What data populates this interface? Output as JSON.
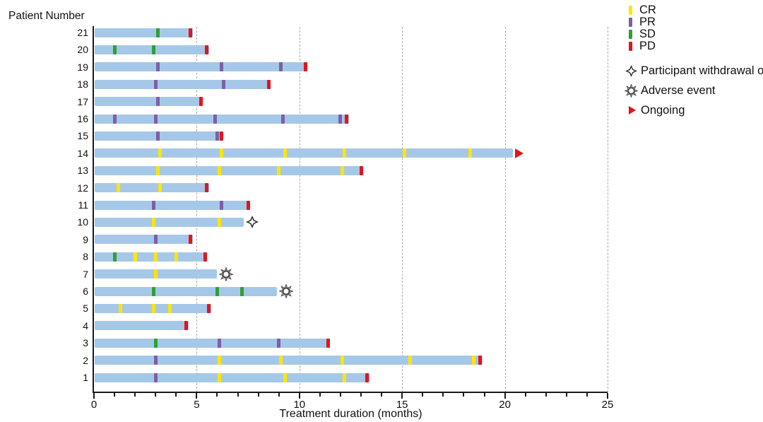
{
  "chart_data": {
    "type": "swimmer-bar",
    "title": "",
    "xlabel": "Treatment duration (months)",
    "ylabel": "Patient Number",
    "xlim": [
      0,
      25
    ],
    "x_major_ticks": [
      0,
      5,
      10,
      15,
      20,
      25
    ],
    "x_minor_tick_interval_months": 1,
    "gridline_months": [
      5,
      10,
      15,
      20,
      25
    ],
    "grid_style": "dashed-vertical",
    "legend_position": "top-right",
    "colors": {
      "bar": "#a6c8e8",
      "CR": "#ffe500",
      "PR": "#7c60a6",
      "SD": "#2fa033",
      "PD": "#e2151c",
      "ongoing": "#e2151c",
      "gridline": "#ababab",
      "axis": "#1a1a1a"
    },
    "legend": [
      {
        "label": "CR",
        "type": "tick",
        "color": "#ffe500"
      },
      {
        "label": "PR",
        "type": "tick",
        "color": "#7c60a6"
      },
      {
        "label": "SD",
        "type": "tick",
        "color": "#2fa033"
      },
      {
        "label": "PD",
        "type": "tick",
        "color": "#e2151c"
      },
      {
        "label": "Participant withdrawal o",
        "type": "symbol",
        "symbol": "diamond"
      },
      {
        "label": "Adverse event",
        "type": "symbol",
        "symbol": "sun"
      },
      {
        "label": "Ongoing",
        "type": "symbol",
        "symbol": "arrow"
      }
    ],
    "patients": [
      {
        "id": 21,
        "end": 4.8,
        "markers": [
          {
            "m": 3.1,
            "t": "SD"
          },
          {
            "m": 4.7,
            "t": "PD"
          }
        ]
      },
      {
        "id": 20,
        "end": 5.6,
        "markers": [
          {
            "m": 1.0,
            "t": "SD"
          },
          {
            "m": 2.9,
            "t": "SD"
          },
          {
            "m": 5.5,
            "t": "PD"
          }
        ]
      },
      {
        "id": 19,
        "end": 10.4,
        "markers": [
          {
            "m": 3.1,
            "t": "PR"
          },
          {
            "m": 6.2,
            "t": "PR"
          },
          {
            "m": 9.1,
            "t": "PR"
          },
          {
            "m": 10.3,
            "t": "PD"
          }
        ]
      },
      {
        "id": 18,
        "end": 8.6,
        "markers": [
          {
            "m": 3.0,
            "t": "PR"
          },
          {
            "m": 6.3,
            "t": "PR"
          },
          {
            "m": 8.5,
            "t": "PD"
          }
        ]
      },
      {
        "id": 17,
        "end": 5.3,
        "markers": [
          {
            "m": 3.1,
            "t": "PR"
          },
          {
            "m": 5.2,
            "t": "PD"
          }
        ]
      },
      {
        "id": 16,
        "end": 12.4,
        "markers": [
          {
            "m": 1.0,
            "t": "PR"
          },
          {
            "m": 3.0,
            "t": "PR"
          },
          {
            "m": 5.9,
            "t": "PR"
          },
          {
            "m": 9.2,
            "t": "PR"
          },
          {
            "m": 12.0,
            "t": "PR"
          },
          {
            "m": 12.3,
            "t": "PD"
          }
        ]
      },
      {
        "id": 15,
        "end": 6.3,
        "markers": [
          {
            "m": 3.1,
            "t": "PR"
          },
          {
            "m": 6.0,
            "t": "PR"
          },
          {
            "m": 6.2,
            "t": "PD"
          }
        ]
      },
      {
        "id": 14,
        "end": 20.4,
        "ongoing": true,
        "markers": [
          {
            "m": 3.2,
            "t": "CR"
          },
          {
            "m": 6.2,
            "t": "CR"
          },
          {
            "m": 9.3,
            "t": "CR"
          },
          {
            "m": 12.2,
            "t": "CR"
          },
          {
            "m": 15.1,
            "t": "CR"
          },
          {
            "m": 18.3,
            "t": "CR"
          }
        ]
      },
      {
        "id": 13,
        "end": 13.1,
        "markers": [
          {
            "m": 3.1,
            "t": "CR"
          },
          {
            "m": 6.1,
            "t": "CR"
          },
          {
            "m": 9.0,
            "t": "CR"
          },
          {
            "m": 12.1,
            "t": "CR"
          },
          {
            "m": 13.0,
            "t": "PD"
          }
        ]
      },
      {
        "id": 12,
        "end": 5.6,
        "markers": [
          {
            "m": 1.2,
            "t": "CR"
          },
          {
            "m": 3.2,
            "t": "CR"
          },
          {
            "m": 5.5,
            "t": "PD"
          }
        ]
      },
      {
        "id": 11,
        "end": 7.6,
        "markers": [
          {
            "m": 2.9,
            "t": "PR"
          },
          {
            "m": 6.2,
            "t": "PR"
          },
          {
            "m": 7.5,
            "t": "PD"
          }
        ]
      },
      {
        "id": 10,
        "end": 7.3,
        "event": "withdrawal",
        "markers": [
          {
            "m": 2.9,
            "t": "CR"
          },
          {
            "m": 6.1,
            "t": "CR"
          }
        ]
      },
      {
        "id": 9,
        "end": 4.8,
        "markers": [
          {
            "m": 3.0,
            "t": "PR"
          },
          {
            "m": 4.7,
            "t": "PD"
          }
        ]
      },
      {
        "id": 8,
        "end": 5.5,
        "markers": [
          {
            "m": 1.0,
            "t": "SD"
          },
          {
            "m": 2.0,
            "t": "CR"
          },
          {
            "m": 3.0,
            "t": "CR"
          },
          {
            "m": 4.0,
            "t": "CR"
          },
          {
            "m": 5.4,
            "t": "PD"
          }
        ]
      },
      {
        "id": 7,
        "end": 6.0,
        "event": "adverse",
        "markers": [
          {
            "m": 3.0,
            "t": "CR"
          }
        ]
      },
      {
        "id": 6,
        "end": 8.9,
        "event": "adverse",
        "markers": [
          {
            "m": 2.9,
            "t": "SD"
          },
          {
            "m": 6.0,
            "t": "SD"
          },
          {
            "m": 7.2,
            "t": "SD"
          }
        ]
      },
      {
        "id": 5,
        "end": 5.7,
        "markers": [
          {
            "m": 1.3,
            "t": "CR"
          },
          {
            "m": 2.9,
            "t": "CR"
          },
          {
            "m": 3.7,
            "t": "CR"
          },
          {
            "m": 5.6,
            "t": "PD"
          }
        ]
      },
      {
        "id": 4,
        "end": 4.6,
        "markers": [
          {
            "m": 4.5,
            "t": "PD"
          }
        ]
      },
      {
        "id": 3,
        "end": 11.5,
        "markers": [
          {
            "m": 3.0,
            "t": "SD"
          },
          {
            "m": 6.1,
            "t": "PR"
          },
          {
            "m": 9.0,
            "t": "PR"
          },
          {
            "m": 11.4,
            "t": "PD"
          }
        ]
      },
      {
        "id": 2,
        "end": 18.9,
        "markers": [
          {
            "m": 3.0,
            "t": "PR"
          },
          {
            "m": 6.1,
            "t": "CR"
          },
          {
            "m": 9.1,
            "t": "CR"
          },
          {
            "m": 12.1,
            "t": "CR"
          },
          {
            "m": 15.4,
            "t": "CR"
          },
          {
            "m": 18.5,
            "t": "CR"
          },
          {
            "m": 18.8,
            "t": "PD"
          }
        ]
      },
      {
        "id": 1,
        "end": 13.4,
        "markers": [
          {
            "m": 3.0,
            "t": "PR"
          },
          {
            "m": 6.1,
            "t": "CR"
          },
          {
            "m": 9.3,
            "t": "CR"
          },
          {
            "m": 12.2,
            "t": "CR"
          },
          {
            "m": 13.3,
            "t": "PD"
          }
        ]
      }
    ]
  }
}
